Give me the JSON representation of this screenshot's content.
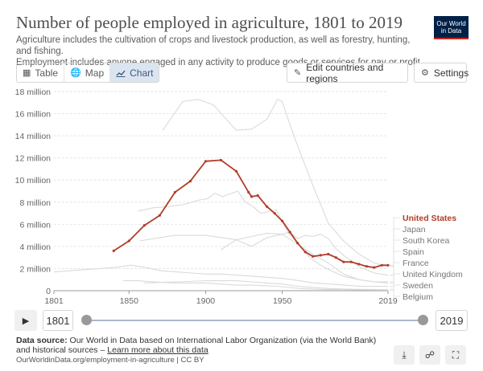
{
  "header": {
    "title": "Number of people employed in agriculture, 1801 to 2019",
    "subtitle_1": "Agriculture includes the cultivation of crops and livestock production, as well as forestry, hunting, and fishing.",
    "subtitle_2": "Employment includes anyone engaged in any activity to produce goods or services for pay or profit.",
    "logo_line1": "Our World",
    "logo_line2": "in Data"
  },
  "toolbar": {
    "tabs": [
      {
        "label": "Table",
        "icon": "table-icon"
      },
      {
        "label": "Map",
        "icon": "globe-icon"
      },
      {
        "label": "Chart",
        "icon": "line-chart-icon",
        "active": true
      }
    ],
    "edit_label": "Edit countries and regions",
    "settings_label": "Settings"
  },
  "colors": {
    "highlight": "#b13d28",
    "muted": "#dadada",
    "accent": "#3d5a80"
  },
  "chart_data": {
    "type": "line",
    "title": "Number of people employed in agriculture, 1801 to 2019",
    "xlim": [
      1801,
      2019
    ],
    "ylim": [
      0,
      18000000
    ],
    "x_ticks": [
      "1801",
      "1850",
      "1900",
      "1950",
      "2019"
    ],
    "y_ticks": [
      "0",
      "2 million",
      "4 million",
      "6 million",
      "8 million",
      "10 million",
      "12 million",
      "14 million",
      "16 million",
      "18 million"
    ],
    "grid": true,
    "series": [
      {
        "name": "United States",
        "highlight": true,
        "points": [
          [
            1840,
            3600000
          ],
          [
            1850,
            4500000
          ],
          [
            1860,
            5900000
          ],
          [
            1870,
            6800000
          ],
          [
            1880,
            8900000
          ],
          [
            1890,
            9900000
          ],
          [
            1900,
            11700000
          ],
          [
            1910,
            11800000
          ],
          [
            1920,
            10800000
          ],
          [
            1928,
            8900000
          ],
          [
            1930,
            8500000
          ],
          [
            1934,
            8600000
          ],
          [
            1940,
            7600000
          ],
          [
            1945,
            7000000
          ],
          [
            1950,
            6300000
          ],
          [
            1955,
            5300000
          ],
          [
            1960,
            4300000
          ],
          [
            1965,
            3500000
          ],
          [
            1970,
            3100000
          ],
          [
            1975,
            3200000
          ],
          [
            1980,
            3300000
          ],
          [
            1985,
            3000000
          ],
          [
            1990,
            2600000
          ],
          [
            1995,
            2600000
          ],
          [
            2000,
            2400000
          ],
          [
            2005,
            2200000
          ],
          [
            2010,
            2100000
          ],
          [
            2015,
            2300000
          ],
          [
            2019,
            2300000
          ]
        ]
      },
      {
        "name": "Japan",
        "points": [
          [
            1872,
            14500000
          ],
          [
            1885,
            17100000
          ],
          [
            1895,
            17300000
          ],
          [
            1905,
            16800000
          ],
          [
            1920,
            14500000
          ],
          [
            1930,
            14600000
          ],
          [
            1940,
            15500000
          ],
          [
            1947,
            17300000
          ],
          [
            1950,
            17100000
          ],
          [
            1955,
            15000000
          ],
          [
            1960,
            13100000
          ],
          [
            1970,
            9500000
          ],
          [
            1980,
            6100000
          ],
          [
            1990,
            4500000
          ],
          [
            2000,
            3300000
          ],
          [
            2010,
            2500000
          ],
          [
            2019,
            2200000
          ]
        ]
      },
      {
        "name": "South Korea",
        "points": [
          [
            1910,
            3700000
          ],
          [
            1920,
            4600000
          ],
          [
            1930,
            4900000
          ],
          [
            1940,
            5200000
          ],
          [
            1950,
            5100000
          ],
          [
            1955,
            5300000
          ],
          [
            1960,
            4700000
          ],
          [
            1965,
            5000000
          ],
          [
            1970,
            4900000
          ],
          [
            1975,
            5100000
          ],
          [
            1980,
            4700000
          ],
          [
            1985,
            3800000
          ],
          [
            1990,
            3200000
          ],
          [
            2000,
            2200000
          ],
          [
            2010,
            1600000
          ],
          [
            2019,
            1400000
          ]
        ]
      },
      {
        "name": "Spain",
        "points": [
          [
            1857,
            4500000
          ],
          [
            1870,
            4800000
          ],
          [
            1880,
            5000000
          ],
          [
            1900,
            5000000
          ],
          [
            1920,
            4600000
          ],
          [
            1930,
            4000000
          ],
          [
            1940,
            4800000
          ],
          [
            1950,
            5100000
          ],
          [
            1960,
            4200000
          ],
          [
            1970,
            3300000
          ],
          [
            1980,
            2500000
          ],
          [
            1990,
            1500000
          ],
          [
            2000,
            1000000
          ],
          [
            2010,
            800000
          ],
          [
            2019,
            800000
          ]
        ]
      },
      {
        "name": "France",
        "points": [
          [
            1856,
            7200000
          ],
          [
            1866,
            7500000
          ],
          [
            1876,
            7600000
          ],
          [
            1886,
            7800000
          ],
          [
            1896,
            8200000
          ],
          [
            1901,
            8300000
          ],
          [
            1906,
            8800000
          ],
          [
            1911,
            8500000
          ],
          [
            1921,
            9000000
          ],
          [
            1926,
            8000000
          ],
          [
            1931,
            7600000
          ],
          [
            1936,
            7000000
          ],
          [
            1946,
            7300000
          ],
          [
            1954,
            5200000
          ],
          [
            1962,
            4000000
          ],
          [
            1968,
            3000000
          ],
          [
            1975,
            2300000
          ],
          [
            1982,
            1800000
          ],
          [
            1990,
            1300000
          ],
          [
            2000,
            1000000
          ],
          [
            2010,
            800000
          ],
          [
            2019,
            700000
          ]
        ]
      },
      {
        "name": "United Kingdom",
        "points": [
          [
            1801,
            1700000
          ],
          [
            1811,
            1800000
          ],
          [
            1821,
            1900000
          ],
          [
            1831,
            2000000
          ],
          [
            1841,
            2100000
          ],
          [
            1851,
            2300000
          ],
          [
            1861,
            2100000
          ],
          [
            1871,
            1800000
          ],
          [
            1881,
            1700000
          ],
          [
            1891,
            1600000
          ],
          [
            1901,
            1500000
          ],
          [
            1911,
            1500000
          ],
          [
            1921,
            1400000
          ],
          [
            1931,
            1300000
          ],
          [
            1951,
            1100000
          ],
          [
            1961,
            900000
          ],
          [
            1971,
            700000
          ],
          [
            1981,
            600000
          ],
          [
            1991,
            500000
          ],
          [
            2001,
            400000
          ],
          [
            2011,
            400000
          ],
          [
            2019,
            400000
          ]
        ]
      },
      {
        "name": "Sweden",
        "points": [
          [
            1860,
            700000
          ],
          [
            1880,
            800000
          ],
          [
            1900,
            900000
          ],
          [
            1920,
            900000
          ],
          [
            1930,
            800000
          ],
          [
            1940,
            700000
          ],
          [
            1950,
            600000
          ],
          [
            1960,
            400000
          ],
          [
            1970,
            300000
          ],
          [
            1980,
            200000
          ],
          [
            1990,
            150000
          ],
          [
            2000,
            120000
          ],
          [
            2019,
            90000
          ]
        ]
      },
      {
        "name": "Belgium",
        "points": [
          [
            1846,
            900000
          ],
          [
            1856,
            900000
          ],
          [
            1866,
            800000
          ],
          [
            1880,
            700000
          ],
          [
            1890,
            700000
          ],
          [
            1900,
            700000
          ],
          [
            1910,
            600000
          ],
          [
            1920,
            500000
          ],
          [
            1930,
            500000
          ],
          [
            1947,
            400000
          ],
          [
            1961,
            200000
          ],
          [
            1970,
            150000
          ],
          [
            1980,
            100000
          ],
          [
            1990,
            100000
          ],
          [
            2000,
            80000
          ],
          [
            2019,
            60000
          ]
        ]
      }
    ]
  },
  "timeline": {
    "start_label": "1801",
    "end_label": "2019",
    "start_fraction": 0,
    "end_fraction": 1
  },
  "footer": {
    "source_label": "Data source:",
    "source_text": "Our World in Data based on International Labor Organization (via the World Bank) and historical sources – ",
    "learn_more": "Learn more about this data",
    "url": "OurWorldinData.org/employment-in-agriculture | CC BY"
  }
}
